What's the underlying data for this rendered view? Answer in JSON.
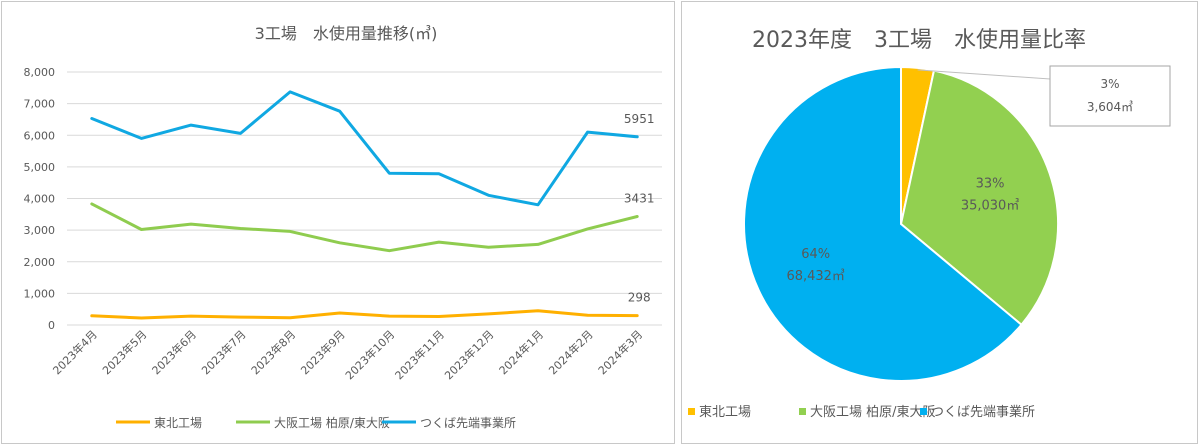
{
  "chart_data": [
    {
      "type": "line",
      "title": "3工場　水使用量推移(㎥)",
      "categories": [
        "2023年4月",
        "2023年5月",
        "2023年6月",
        "2023年7月",
        "2023年8月",
        "2023年9月",
        "2023年10月",
        "2023年11月",
        "2023年12月",
        "2024年1月",
        "2024年2月",
        "2024年3月"
      ],
      "y_ticks": [
        "0",
        "1,000",
        "2,000",
        "3,000",
        "4,000",
        "5,000",
        "6,000",
        "7,000",
        "8,000"
      ],
      "ylim": [
        0,
        8000
      ],
      "grid": true,
      "legend_position": "bottom",
      "series": [
        {
          "name": "東北工場",
          "color": "#ffb000",
          "values": [
            290,
            220,
            280,
            250,
            230,
            380,
            280,
            270,
            350,
            450,
            310,
            298
          ],
          "end_label": "298"
        },
        {
          "name": "大阪工場 柏原/東大阪",
          "color": "#8fcc4f",
          "values": [
            3830,
            3020,
            3190,
            3050,
            2960,
            2600,
            2350,
            2620,
            2460,
            2550,
            3040,
            3431
          ],
          "end_label": "3431"
        },
        {
          "name": "つくば先端事業所",
          "color": "#10a8e2",
          "values": [
            6530,
            5900,
            6320,
            6060,
            7370,
            6760,
            4800,
            4780,
            4100,
            3800,
            6100,
            5951
          ],
          "end_label": "5951"
        }
      ]
    },
    {
      "type": "pie",
      "title": "2023年度　3工場　水使用量比率",
      "legend_position": "bottom",
      "slices": [
        {
          "name": "東北工場",
          "value": 3604,
          "percent_label": "3%",
          "value_label": "3,604㎥",
          "color": "#ffc000"
        },
        {
          "name": "大阪工場 柏原/東大阪",
          "value": 35030,
          "percent_label": "33%",
          "value_label": "35,030㎥",
          "color": "#92d050"
        },
        {
          "name": "つくば先端事業所",
          "value": 68432,
          "percent_label": "64%",
          "value_label": "68,432㎥",
          "color": "#00b0f0"
        }
      ]
    }
  ]
}
